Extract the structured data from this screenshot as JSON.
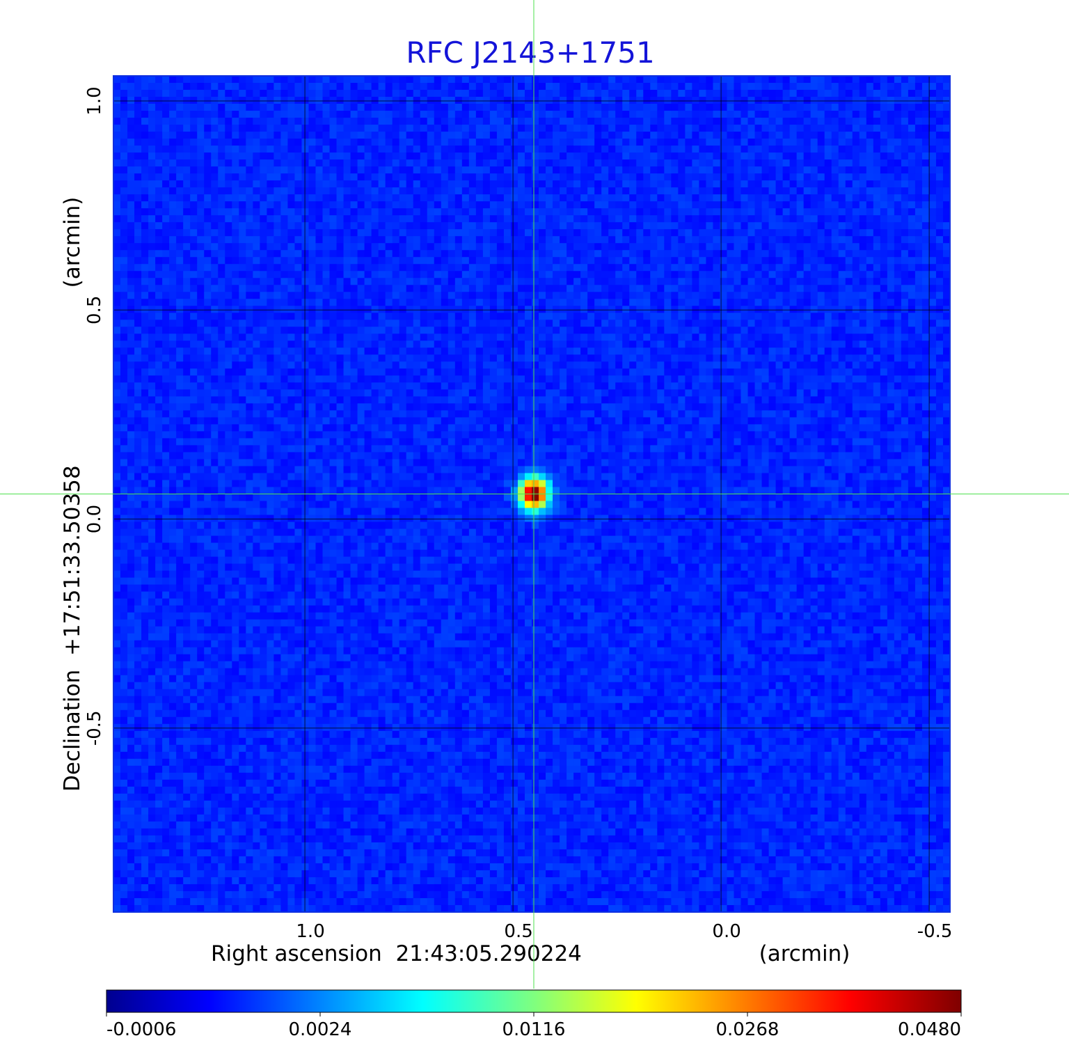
{
  "chart_data": {
    "type": "heatmap",
    "title": "RFC J2143+1751",
    "xlabel": "Right ascension  21:43:05.290224",
    "xunit": "(arcmin)",
    "ylabel": "Declination  +17:51:33.50358",
    "yunit": "(arcmin)",
    "x_ticks": [
      "1.0",
      "0.5",
      "0.0",
      "-0.5"
    ],
    "x_tick_values": [
      1.0,
      0.5,
      0.0,
      -0.5
    ],
    "y_ticks": [
      "1.0",
      "0.5",
      "0.0",
      "-0.5"
    ],
    "y_tick_values": [
      1.0,
      0.5,
      0.0,
      -0.5
    ],
    "xlim": [
      1.46,
      -0.55
    ],
    "ylim": [
      -0.94,
      1.06
    ],
    "grid": true,
    "crosshair": {
      "x": 0.45,
      "y": 0.06,
      "color": "#4ee04e"
    },
    "source": {
      "ra_offset": 0.45,
      "dec_offset": 0.06,
      "peak": 0.048
    },
    "background_level": -0.0006,
    "colorbar": {
      "colormap": "jet",
      "min": -0.0006,
      "max": 0.048,
      "tick_labels": [
        "-0.0006",
        "0.0024",
        "0.0116",
        "0.0268",
        "0.0480"
      ],
      "tick_values": [
        -0.0006,
        0.0024,
        0.0116,
        0.0268,
        0.048
      ]
    }
  }
}
